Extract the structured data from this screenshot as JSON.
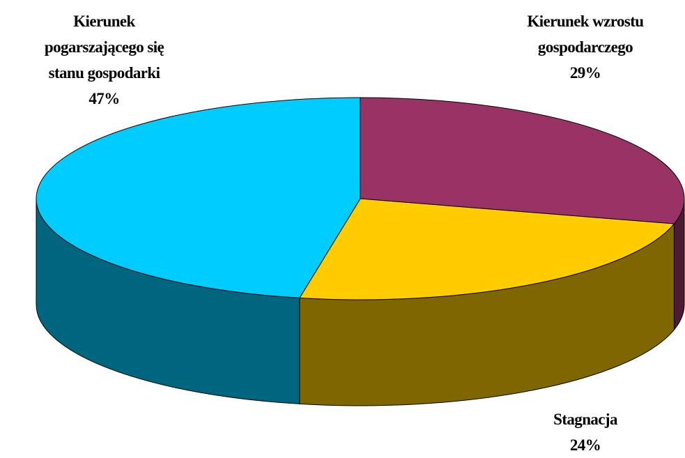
{
  "chart_data": {
    "type": "pie",
    "three_d": true,
    "categories": [
      "Kierunek wzrostu gospodarczego",
      "Stagnacja",
      "Kierunek pogarszającego się stanu gospodarki"
    ],
    "values": [
      29,
      24,
      47
    ],
    "value_labels": [
      "29%",
      "24%",
      "47%"
    ],
    "colors": [
      "#993366",
      "#ffcc00",
      "#00ccff"
    ]
  }
}
